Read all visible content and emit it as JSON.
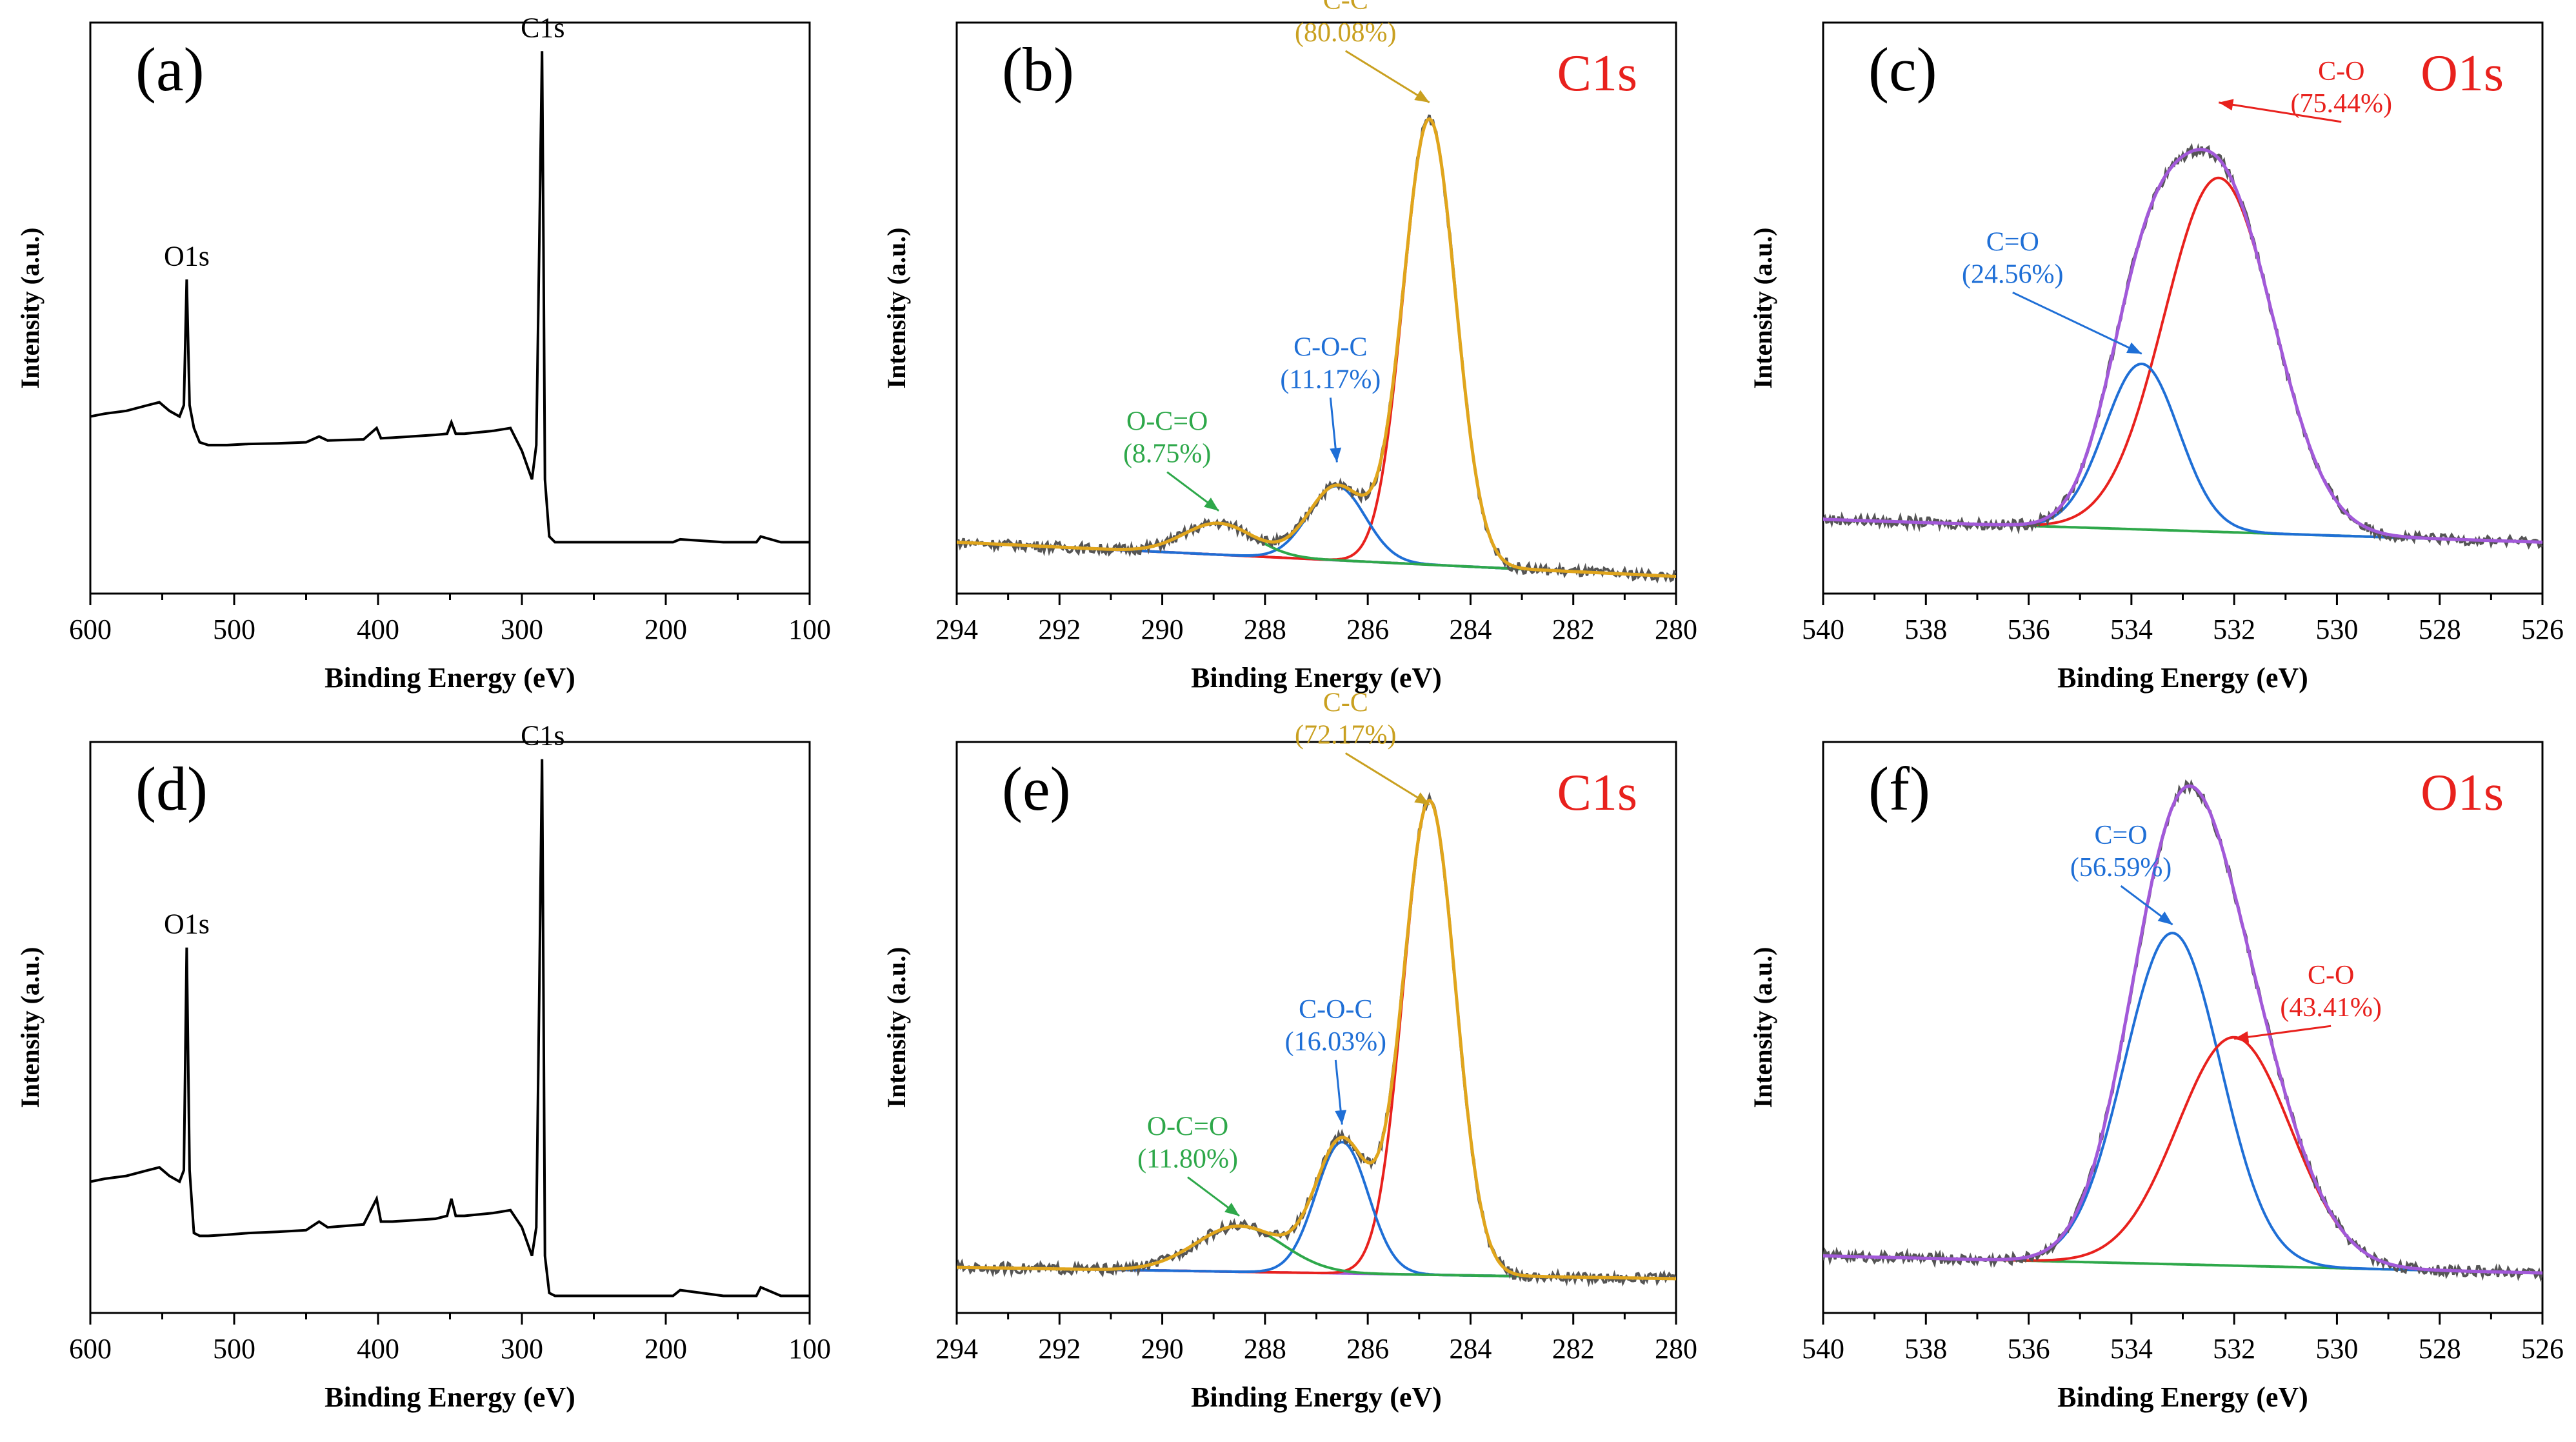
{
  "chart_data": [
    {
      "id": "a",
      "panel_label": "(a)",
      "type": "line",
      "kind": "survey",
      "title": "",
      "xlabel": "Binding Energy (eV)",
      "ylabel": "Intensity (a.u.)",
      "xlim": [
        600,
        100
      ],
      "ylim": [
        0,
        1
      ],
      "xticks": [
        600,
        500,
        400,
        300,
        200,
        100
      ],
      "xtick_labels": [
        "600",
        "500",
        "400",
        "300",
        "200",
        "100"
      ],
      "grid": false,
      "legend": "none",
      "series": [
        {
          "name": "Survey",
          "color": "#000000",
          "x": [
            600,
            590,
            575,
            560,
            552,
            545,
            538,
            535,
            533,
            531,
            528,
            524,
            518,
            505,
            490,
            470,
            450,
            441,
            435,
            410,
            401,
            398,
            390,
            360,
            352,
            349,
            346,
            340,
            320,
            308,
            300,
            293,
            290,
            288,
            286,
            285,
            284,
            281,
            277,
            270,
            230,
            195,
            190,
            160,
            137,
            134,
            120,
            100
          ],
          "y": [
            0.31,
            0.315,
            0.32,
            0.33,
            0.335,
            0.32,
            0.31,
            0.33,
            0.55,
            0.33,
            0.29,
            0.265,
            0.26,
            0.26,
            0.262,
            0.263,
            0.265,
            0.275,
            0.268,
            0.27,
            0.29,
            0.272,
            0.273,
            0.278,
            0.28,
            0.3,
            0.28,
            0.28,
            0.285,
            0.29,
            0.25,
            0.2,
            0.26,
            0.6,
            0.95,
            0.6,
            0.2,
            0.1,
            0.09,
            0.09,
            0.09,
            0.09,
            0.095,
            0.09,
            0.09,
            0.1,
            0.09,
            0.09
          ]
        }
      ],
      "annotations": [
        {
          "text": "O1s",
          "x": 533,
          "y": 0.55,
          "color": "#000000"
        },
        {
          "text": "C1s",
          "x": 285.5,
          "y": 0.95,
          "color": "#000000"
        }
      ]
    },
    {
      "id": "b",
      "panel_label": "(b)",
      "type": "line",
      "kind": "fit",
      "title": "C1s",
      "title_color": "#e8211d",
      "xlabel": "Binding Energy (eV)",
      "ylabel": "Intensity (a.u.)",
      "xlim": [
        294,
        280
      ],
      "ylim": [
        0,
        1
      ],
      "xticks": [
        294,
        292,
        290,
        288,
        286,
        284,
        282,
        280
      ],
      "xtick_labels": [
        "294",
        "292",
        "290",
        "288",
        "286",
        "284",
        "282",
        "280"
      ],
      "grid": false,
      "legend": "none",
      "baseline": {
        "color": "#a259d9",
        "from": 0.09,
        "to": 0.03
      },
      "peaks": [
        {
          "name": "C-C",
          "center": 284.8,
          "fwhm": 1.2,
          "amp": 0.78,
          "color": "#e8211d"
        },
        {
          "name": "C-O-C",
          "center": 286.6,
          "fwhm": 1.3,
          "amp": 0.13,
          "color": "#1f6fd6"
        },
        {
          "name": "O-C=O",
          "center": 288.9,
          "fwhm": 1.6,
          "amp": 0.055,
          "color": "#2ea84a"
        }
      ],
      "envelope_color": "#e0a51c",
      "raw_color": "#555555",
      "annotations": [
        {
          "line1": "C-C",
          "line2": "(80.08%)",
          "color": "#c9a020",
          "target_x": 284.8,
          "target_y": 0.86
        },
        {
          "line1": "C-O-C",
          "line2": "(11.17%)",
          "color": "#1f6fd6",
          "target_x": 286.6,
          "target_y": 0.23
        },
        {
          "line1": "O-C=O",
          "line2": "(8.75%)",
          "color": "#2ea84a",
          "target_x": 288.9,
          "target_y": 0.145
        }
      ]
    },
    {
      "id": "c",
      "panel_label": "(c)",
      "type": "line",
      "kind": "fit",
      "title": "O1s",
      "title_color": "#e8211d",
      "xlabel": "Binding Energy (eV)",
      "ylabel": "Intensity (a.u.)",
      "xlim": [
        540,
        526
      ],
      "ylim": [
        0,
        1
      ],
      "xticks": [
        540,
        538,
        536,
        534,
        532,
        530,
        528,
        526
      ],
      "xtick_labels": [
        "540",
        "538",
        "536",
        "534",
        "532",
        "530",
        "528",
        "526"
      ],
      "grid": false,
      "legend": "none",
      "baseline": {
        "color": "#2ea84a",
        "from": 0.13,
        "to": 0.09
      },
      "peaks": [
        {
          "name": "C-O",
          "center": 532.3,
          "fwhm": 2.5,
          "amp": 0.62,
          "color": "#e8211d"
        },
        {
          "name": "C=O",
          "center": 533.8,
          "fwhm": 1.7,
          "amp": 0.29,
          "color": "#1f6fd6"
        }
      ],
      "envelope_color": "#a259d9",
      "raw_color": "#555555",
      "annotations": [
        {
          "line1": "C-O",
          "line2": "(75.44%)",
          "color": "#e8211d",
          "target_x": 532.3,
          "target_y": 0.86
        },
        {
          "line1": "C=O",
          "line2": "(24.56%)",
          "color": "#1f6fd6",
          "target_x": 533.8,
          "target_y": 0.42
        }
      ]
    },
    {
      "id": "d",
      "panel_label": "(d)",
      "type": "line",
      "kind": "survey",
      "title": "",
      "xlabel": "Binding Energy (eV)",
      "ylabel": "Intensity (a.u.)",
      "xlim": [
        600,
        100
      ],
      "ylim": [
        0,
        1
      ],
      "xticks": [
        600,
        500,
        400,
        300,
        200,
        100
      ],
      "xtick_labels": [
        "600",
        "500",
        "400",
        "300",
        "200",
        "100"
      ],
      "grid": false,
      "legend": "none",
      "series": [
        {
          "name": "Survey",
          "color": "#000000",
          "x": [
            600,
            590,
            575,
            560,
            552,
            545,
            538,
            535,
            533,
            531,
            528,
            524,
            518,
            505,
            490,
            470,
            450,
            441,
            435,
            410,
            401,
            398,
            390,
            360,
            352,
            349,
            346,
            340,
            320,
            308,
            300,
            293,
            290,
            288,
            286,
            285,
            284,
            281,
            277,
            270,
            230,
            195,
            190,
            160,
            137,
            134,
            120,
            100
          ],
          "y": [
            0.23,
            0.235,
            0.24,
            0.25,
            0.255,
            0.24,
            0.23,
            0.25,
            0.64,
            0.25,
            0.14,
            0.135,
            0.135,
            0.137,
            0.14,
            0.142,
            0.145,
            0.16,
            0.15,
            0.155,
            0.2,
            0.16,
            0.16,
            0.165,
            0.17,
            0.2,
            0.17,
            0.17,
            0.175,
            0.18,
            0.15,
            0.1,
            0.15,
            0.55,
            0.97,
            0.55,
            0.1,
            0.035,
            0.03,
            0.03,
            0.03,
            0.03,
            0.04,
            0.03,
            0.03,
            0.045,
            0.03,
            0.03
          ]
        }
      ],
      "annotations": [
        {
          "text": "O1s",
          "x": 533,
          "y": 0.64,
          "color": "#000000"
        },
        {
          "text": "C1s",
          "x": 285.5,
          "y": 0.97,
          "color": "#000000"
        }
      ]
    },
    {
      "id": "e",
      "panel_label": "(e)",
      "type": "line",
      "kind": "fit",
      "title": "C1s",
      "title_color": "#e8211d",
      "xlabel": "Binding Energy (eV)",
      "ylabel": "Intensity (a.u.)",
      "xlim": [
        294,
        280
      ],
      "ylim": [
        0,
        1
      ],
      "xticks": [
        294,
        292,
        290,
        288,
        286,
        284,
        282,
        280
      ],
      "xtick_labels": [
        "294",
        "292",
        "290",
        "288",
        "286",
        "284",
        "282",
        "280"
      ],
      "grid": false,
      "legend": "none",
      "baseline": {
        "color": "#a259d9",
        "from": 0.08,
        "to": 0.06
      },
      "peaks": [
        {
          "name": "C-C",
          "center": 284.8,
          "fwhm": 1.2,
          "amp": 0.83,
          "color": "#e8211d"
        },
        {
          "name": "C-O-C",
          "center": 286.5,
          "fwhm": 1.2,
          "amp": 0.23,
          "color": "#1f6fd6"
        },
        {
          "name": "O-C=O",
          "center": 288.5,
          "fwhm": 2.0,
          "amp": 0.08,
          "color": "#2ea84a"
        }
      ],
      "envelope_color": "#e0a51c",
      "raw_color": "#555555",
      "annotations": [
        {
          "line1": "C-C",
          "line2": "(72.17%)",
          "color": "#c9a020",
          "target_x": 284.8,
          "target_y": 0.89
        },
        {
          "line1": "C-O-C",
          "line2": "(16.03%)",
          "color": "#1f6fd6",
          "target_x": 286.5,
          "target_y": 0.33
        },
        {
          "line1": "O-C=O",
          "line2": "(11.80%)",
          "color": "#2ea84a",
          "target_x": 288.5,
          "target_y": 0.17
        }
      ]
    },
    {
      "id": "f",
      "panel_label": "(f)",
      "type": "line",
      "kind": "fit",
      "title": "O1s",
      "title_color": "#e8211d",
      "xlabel": "Binding Energy (eV)",
      "ylabel": "Intensity (a.u.)",
      "xlim": [
        540,
        526
      ],
      "ylim": [
        0,
        1
      ],
      "xticks": [
        540,
        538,
        536,
        534,
        532,
        530,
        528,
        526
      ],
      "xtick_labels": [
        "540",
        "538",
        "536",
        "534",
        "532",
        "530",
        "528",
        "526"
      ],
      "grid": false,
      "legend": "none",
      "baseline": {
        "color": "#2ea84a",
        "from": 0.1,
        "to": 0.07
      },
      "peaks": [
        {
          "name": "C=O",
          "center": 533.2,
          "fwhm": 2.2,
          "amp": 0.58,
          "color": "#1f6fd6"
        },
        {
          "name": "C-O",
          "center": 532.0,
          "fwhm": 2.6,
          "amp": 0.4,
          "color": "#e8211d"
        }
      ],
      "envelope_color": "#a259d9",
      "raw_color": "#555555",
      "annotations": [
        {
          "line1": "C=O",
          "line2": "(56.59%)",
          "color": "#1f6fd6",
          "target_x": 533.2,
          "target_y": 0.68
        },
        {
          "line1": "C-O",
          "line2": "(43.41%)",
          "color": "#e8211d",
          "target_x": 532.0,
          "target_y": 0.48
        }
      ]
    }
  ]
}
